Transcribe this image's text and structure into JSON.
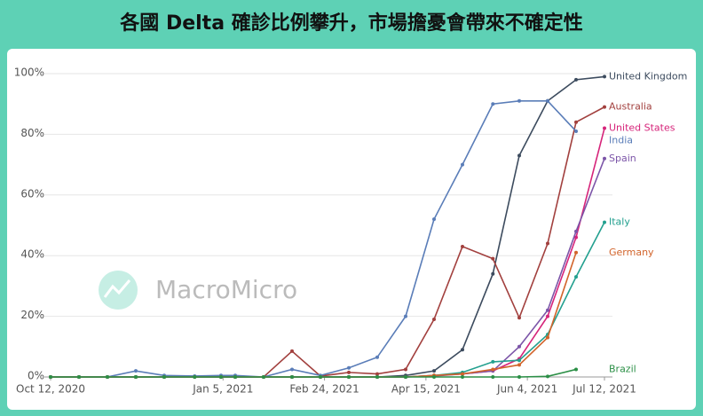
{
  "chart_data": {
    "type": "line",
    "title": "各國 Delta 確診比例攀升，市場擔憂會帶來不確定性",
    "watermark": "MacroMicro",
    "x": [
      "2020-10-12",
      "2020-10-26",
      "2020-11-09",
      "2020-11-23",
      "2020-12-07",
      "2020-12-22",
      "2021-01-04",
      "2021-01-11",
      "2021-01-25",
      "2021-02-08",
      "2021-02-22",
      "2021-03-08",
      "2021-03-22",
      "2021-04-05",
      "2021-04-19",
      "2021-05-03",
      "2021-05-18",
      "2021-05-31",
      "2021-06-14",
      "2021-06-28",
      "2021-07-12"
    ],
    "xlim": [
      "2020-10-12",
      "2021-07-12"
    ],
    "xticks": [
      {
        "value": "2020-10-12",
        "label": "Oct 12, 2020"
      },
      {
        "value": "2021-01-05",
        "label": "Jan 5, 2021"
      },
      {
        "value": "2021-02-24",
        "label": "Feb 24, 2021"
      },
      {
        "value": "2021-04-15",
        "label": "Apr 15, 2021"
      },
      {
        "value": "2021-06-04",
        "label": "Jun 4, 2021"
      },
      {
        "value": "2021-07-12",
        "label": "Jul 12, 2021"
      }
    ],
    "ylim": [
      0,
      100
    ],
    "yticks": [
      {
        "value": 0,
        "label": "0%"
      },
      {
        "value": 20,
        "label": "20%"
      },
      {
        "value": 40,
        "label": "40%"
      },
      {
        "value": 60,
        "label": "60%"
      },
      {
        "value": 80,
        "label": "80%"
      },
      {
        "value": 100,
        "label": "100%"
      }
    ],
    "grid": true,
    "series": [
      {
        "name": "United Kingdom",
        "color": "#3c4b5e",
        "values": [
          0,
          0,
          0,
          0,
          0,
          0,
          0,
          0,
          0,
          0,
          0,
          0,
          0,
          0.5,
          2,
          9,
          34,
          73,
          91,
          98,
          99
        ]
      },
      {
        "name": "Australia",
        "color": "#a2403e",
        "values": [
          0,
          0,
          0,
          0,
          0,
          0,
          0,
          0,
          0,
          8.5,
          0.3,
          1.5,
          1,
          2.5,
          19,
          43,
          39,
          19.5,
          44,
          84,
          89
        ]
      },
      {
        "name": "United States",
        "color": "#d6247a",
        "values": [
          0,
          0,
          0,
          0,
          0,
          0,
          0,
          0,
          0,
          0,
          0,
          0,
          0,
          0,
          0.5,
          1,
          2,
          6,
          20,
          46,
          82
        ]
      },
      {
        "name": "India",
        "color": "#5a7db8",
        "values": [
          0,
          0,
          0,
          2,
          0.5,
          0.3,
          0.5,
          0.5,
          0,
          2.5,
          0.5,
          3,
          6.5,
          20,
          52,
          70,
          90,
          91,
          91,
          81,
          null
        ]
      },
      {
        "name": "Spain",
        "color": "#7c55a8",
        "values": [
          0,
          0,
          0,
          0,
          0,
          0,
          0,
          0,
          0,
          0,
          0,
          0,
          0,
          0,
          0.3,
          1,
          2,
          10,
          22,
          48,
          72
        ]
      },
      {
        "name": "Italy",
        "color": "#23a08f",
        "values": [
          0,
          0,
          0,
          0,
          0,
          0,
          0,
          0,
          0,
          0,
          0,
          0,
          0,
          0,
          0.5,
          1.5,
          5,
          5.5,
          14,
          33,
          51
        ]
      },
      {
        "name": "Germany",
        "color": "#d2642b",
        "values": [
          0,
          0,
          0,
          0,
          0,
          0,
          0,
          0,
          0,
          0,
          0,
          0,
          0,
          0,
          0.5,
          1,
          2.5,
          4,
          13,
          41,
          null
        ]
      },
      {
        "name": "Brazil",
        "color": "#2b8f46",
        "values": [
          0,
          0,
          0,
          0,
          0,
          0,
          0,
          0,
          0,
          0,
          0,
          0,
          0,
          0,
          0,
          0,
          0,
          0,
          0.2,
          2.5,
          null
        ]
      }
    ]
  }
}
